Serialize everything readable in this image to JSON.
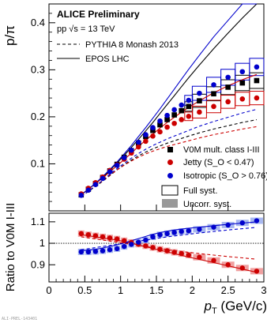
{
  "figure": {
    "collaboration": "ALICE Preliminary",
    "system": "pp √s = 13 TeV",
    "footer_id": "ALI-PREL-143401"
  },
  "colors": {
    "v0m": "#000000",
    "jetty": "#cc0000",
    "isotropic": "#0000cc"
  },
  "chart_data": [
    {
      "type": "scatter",
      "panel": "top",
      "ylabel": "p/π",
      "xlabel": "",
      "xlim": [
        0,
        3
      ],
      "ylim": [
        0,
        0.44
      ],
      "xticks": [
        0,
        0.5,
        1,
        1.5,
        2,
        2.5,
        3
      ],
      "yticks": [
        0.1,
        0.2,
        0.3,
        0.4
      ],
      "yticklabels": [
        "0.1",
        "0.2",
        "0.3",
        "0.4"
      ],
      "legend_top": [
        {
          "label": "ALICE Preliminary"
        },
        {
          "label": "pp √s = 13 TeV"
        },
        {
          "label": "PYTHIA 8 Monash 2013",
          "style": "dashed"
        },
        {
          "label": "EPOS LHC",
          "style": "solid"
        }
      ],
      "legend_bottom": [
        {
          "label": "V0M mult. class I-III",
          "marker": "square",
          "color": "#000000"
        },
        {
          "label": "Jetty (S_O < 0.47)",
          "marker": "circle",
          "color": "#cc0000"
        },
        {
          "label": "Isotropic (S_O > 0.76)",
          "marker": "circle",
          "color": "#0000cc"
        },
        {
          "label": "Full syst.",
          "marker": "open-box"
        },
        {
          "label": "Uncorr. syst.",
          "marker": "filled-box"
        }
      ],
      "x": [
        0.45,
        0.55,
        0.65,
        0.75,
        0.85,
        0.95,
        1.05,
        1.15,
        1.25,
        1.35,
        1.45,
        1.55,
        1.65,
        1.75,
        1.85,
        1.95,
        2.1,
        2.3,
        2.5,
        2.7,
        2.9
      ],
      "series": [
        {
          "name": "V0M mult. class I-III",
          "values": [
            0.034,
            0.046,
            0.058,
            0.071,
            0.085,
            0.099,
            0.114,
            0.128,
            0.144,
            0.158,
            0.171,
            0.183,
            0.194,
            0.204,
            0.213,
            0.222,
            0.234,
            0.249,
            0.263,
            0.272,
            0.277
          ]
        },
        {
          "name": "Jetty (S_O < 0.47)",
          "values": [
            0.036,
            0.048,
            0.06,
            0.072,
            0.086,
            0.098,
            0.11,
            0.123,
            0.136,
            0.148,
            0.159,
            0.168,
            0.178,
            0.186,
            0.194,
            0.201,
            0.21,
            0.222,
            0.232,
            0.238,
            0.24
          ]
        },
        {
          "name": "Isotropic (S_O > 0.76)",
          "values": [
            0.033,
            0.044,
            0.056,
            0.069,
            0.083,
            0.097,
            0.113,
            0.129,
            0.146,
            0.162,
            0.177,
            0.191,
            0.203,
            0.215,
            0.225,
            0.235,
            0.25,
            0.268,
            0.284,
            0.296,
            0.306
          ]
        }
      ],
      "model_curves": [
        {
          "model": "PYTHIA 8 Monash 2013",
          "style": "dashed",
          "class": "V0M",
          "values": [
            0.031,
            0.041,
            0.052,
            0.063,
            0.075,
            0.087,
            0.098,
            0.108,
            0.117,
            0.125,
            0.132,
            0.138,
            0.144,
            0.149,
            0.154,
            0.159,
            0.166,
            0.174,
            0.181,
            0.188,
            0.194
          ]
        },
        {
          "model": "PYTHIA 8 Monash 2013",
          "style": "dashed",
          "class": "Jetty",
          "values": [
            0.032,
            0.042,
            0.053,
            0.064,
            0.076,
            0.087,
            0.097,
            0.106,
            0.114,
            0.121,
            0.127,
            0.132,
            0.137,
            0.141,
            0.145,
            0.149,
            0.155,
            0.162,
            0.168,
            0.174,
            0.179
          ]
        },
        {
          "model": "PYTHIA 8 Monash 2013",
          "style": "dashed",
          "class": "Isotropic",
          "values": [
            0.031,
            0.042,
            0.053,
            0.065,
            0.078,
            0.09,
            0.101,
            0.112,
            0.122,
            0.131,
            0.139,
            0.146,
            0.153,
            0.159,
            0.165,
            0.171,
            0.18,
            0.19,
            0.199,
            0.208,
            0.216
          ]
        },
        {
          "model": "EPOS LHC",
          "style": "solid",
          "class": "V0M",
          "values": [
            0.034,
            0.046,
            0.058,
            0.071,
            0.086,
            0.102,
            0.118,
            0.135,
            0.152,
            0.17,
            0.188,
            0.207,
            0.226,
            0.245,
            0.264,
            0.283,
            0.31,
            0.345,
            0.378,
            0.41,
            0.44
          ]
        },
        {
          "model": "EPOS LHC",
          "style": "solid",
          "class": "Jetty",
          "values": [
            0.035,
            0.046,
            0.058,
            0.07,
            0.083,
            0.096,
            0.109,
            0.123,
            0.137,
            0.15,
            0.163,
            0.176,
            0.188,
            0.199,
            0.21,
            0.22,
            0.234,
            0.251,
            0.266,
            0.279,
            0.29
          ]
        },
        {
          "model": "EPOS LHC",
          "style": "solid",
          "class": "Isotropic",
          "values": [
            0.034,
            0.046,
            0.059,
            0.073,
            0.088,
            0.104,
            0.121,
            0.139,
            0.158,
            0.177,
            0.197,
            0.217,
            0.238,
            0.259,
            0.28,
            0.301,
            0.331,
            0.37,
            0.405,
            0.44,
            0.47
          ]
        }
      ]
    },
    {
      "type": "scatter",
      "panel": "bottom",
      "ylabel": "Ratio to V0M I-III",
      "xlabel": "p_T (GeV/c)",
      "xlim": [
        0,
        3
      ],
      "ylim": [
        0.82,
        1.14
      ],
      "xticks": [
        0,
        0.5,
        1,
        1.5,
        2,
        2.5,
        3
      ],
      "xticklabels": [
        "0",
        "0.5",
        "1",
        "1.5",
        "2",
        "2.5",
        "3"
      ],
      "yticks": [
        0.9,
        1.0,
        1.1
      ],
      "yticklabels": [
        "0.9",
        "1",
        "1.1"
      ],
      "reference_line": 1.0,
      "x": [
        0.45,
        0.55,
        0.65,
        0.75,
        0.85,
        0.95,
        1.05,
        1.15,
        1.25,
        1.35,
        1.45,
        1.55,
        1.65,
        1.75,
        1.85,
        1.95,
        2.1,
        2.3,
        2.5,
        2.7,
        2.9
      ],
      "series": [
        {
          "name": "Jetty (S_O < 0.47)",
          "values": [
            1.045,
            1.04,
            1.035,
            1.03,
            1.025,
            1.02,
            1.012,
            1.004,
            0.996,
            0.988,
            0.98,
            0.972,
            0.965,
            0.958,
            0.952,
            0.945,
            0.935,
            0.92,
            0.9,
            0.885,
            0.87
          ]
        },
        {
          "name": "Isotropic (S_O > 0.76)",
          "values": [
            0.96,
            0.96,
            0.962,
            0.965,
            0.97,
            0.975,
            0.985,
            0.995,
            1.005,
            1.015,
            1.03,
            1.04,
            1.045,
            1.05,
            1.055,
            1.058,
            1.065,
            1.075,
            1.085,
            1.095,
            1.105
          ]
        }
      ],
      "model_curves": [
        {
          "model": "PYTHIA 8 Monash 2013",
          "style": "dashed",
          "class": "Jetty",
          "values": [
            1.03,
            1.025,
            1.02,
            1.015,
            1.01,
            1.005,
            1.0,
            0.995,
            0.99,
            0.985,
            0.98,
            0.975,
            0.97,
            0.966,
            0.962,
            0.958,
            0.952,
            0.945,
            0.938,
            0.932,
            0.926
          ]
        },
        {
          "model": "PYTHIA 8 Monash 2013",
          "style": "dashed",
          "class": "Isotropic",
          "values": [
            0.97,
            0.975,
            0.98,
            0.985,
            0.99,
            0.995,
            1.0,
            1.005,
            1.01,
            1.015,
            1.02,
            1.025,
            1.03,
            1.034,
            1.038,
            1.042,
            1.048,
            1.055,
            1.062,
            1.068,
            1.074
          ]
        },
        {
          "model": "EPOS LHC",
          "style": "solid",
          "class": "Jetty",
          "values": [
            1.04,
            1.035,
            1.03,
            1.025,
            1.02,
            1.015,
            1.008,
            1.0,
            0.992,
            0.984,
            0.976,
            0.968,
            0.96,
            0.952,
            0.944,
            0.936,
            0.925,
            0.91,
            0.895,
            0.88,
            0.865
          ]
        },
        {
          "model": "EPOS LHC",
          "style": "solid",
          "class": "Isotropic",
          "values": [
            0.965,
            0.968,
            0.972,
            0.978,
            0.985,
            0.993,
            1.002,
            1.012,
            1.022,
            1.032,
            1.042,
            1.05,
            1.056,
            1.062,
            1.066,
            1.07,
            1.075,
            1.082,
            1.088,
            1.094,
            1.1
          ]
        }
      ]
    }
  ]
}
